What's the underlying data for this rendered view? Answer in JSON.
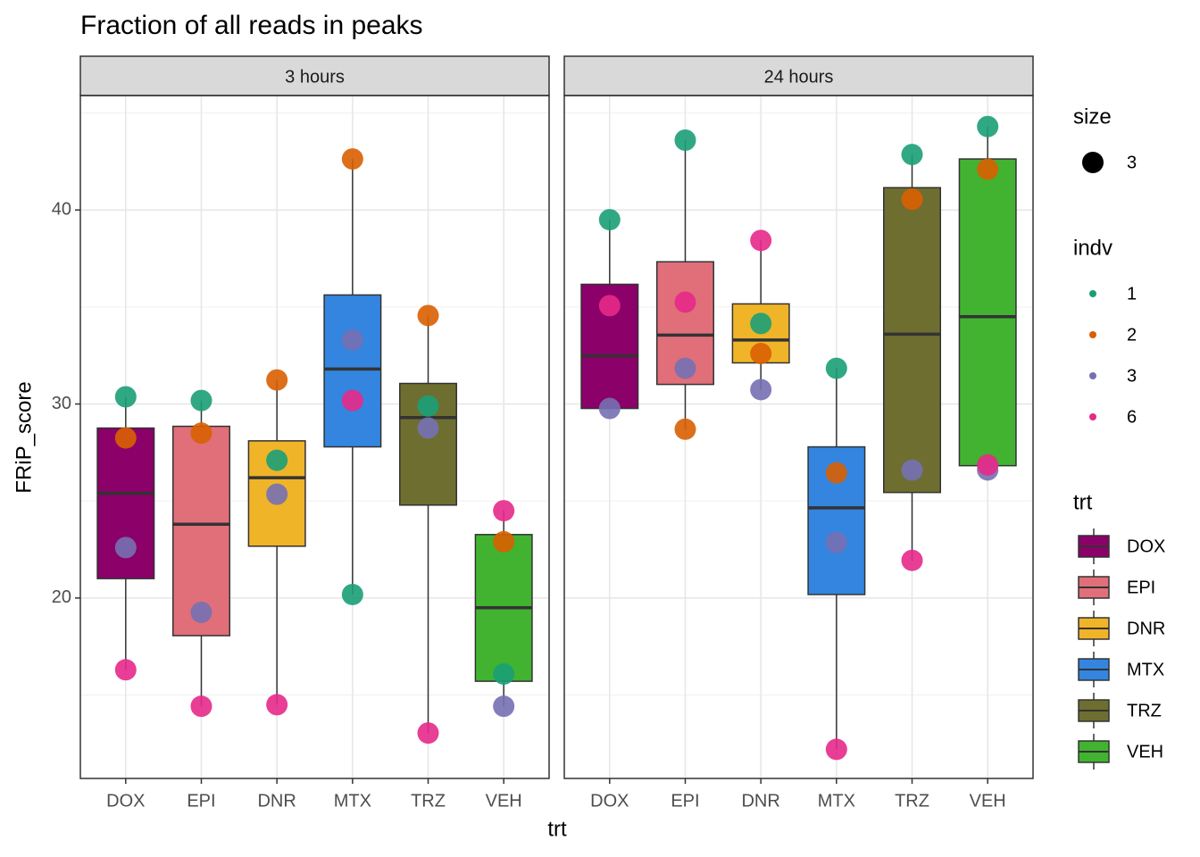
{
  "chart_data": {
    "type": "box",
    "title": "Fraction of all reads in peaks",
    "x_label": "trt",
    "y_label": "FRiP_score",
    "ylim": [
      10.7,
      45.9
    ],
    "yticks": [
      20,
      30,
      40
    ],
    "grid": true,
    "categories": [
      "DOX",
      "EPI",
      "DNR",
      "MTX",
      "TRZ",
      "VEH"
    ],
    "colors": [
      "#8b0069",
      "#e06f7a",
      "#f0b428",
      "#3385e0",
      "#6e6e30",
      "#41b330"
    ],
    "legend_title": "trt",
    "point_legend_title": "indv",
    "size_legend_title": "size",
    "point_size": 3,
    "series": [
      {
        "name": "1",
        "color": "#1b9e77"
      },
      {
        "name": "2",
        "color": "#d95f02"
      },
      {
        "name": "3",
        "color": "#7570b3"
      },
      {
        "name": "6",
        "color": "#e7298a"
      }
    ],
    "facets": [
      {
        "label": "3 hours",
        "q1": [
          21.0,
          18.06,
          22.67,
          27.79,
          24.79,
          15.71
        ],
        "median": [
          25.4,
          23.8,
          26.2,
          31.8,
          29.3,
          19.5
        ],
        "q3": [
          28.76,
          28.85,
          28.1,
          35.62,
          31.06,
          23.27
        ],
        "whisker_low": [
          16.3,
          14.42,
          14.5,
          20.18,
          13.04,
          14.42
        ],
        "whisker_high": [
          30.37,
          30.18,
          31.24,
          42.63,
          34.56,
          24.5
        ],
        "points": [
          [
            30.37,
            30.18,
            27.1,
            20.18,
            29.9,
            16.08
          ],
          [
            28.25,
            28.5,
            31.24,
            42.63,
            34.56,
            22.9
          ],
          [
            22.6,
            19.26,
            25.35,
            33.3,
            28.76,
            14.42
          ],
          [
            16.3,
            14.42,
            14.5,
            30.18,
            13.04,
            24.5
          ]
        ]
      },
      {
        "label": "24 hours",
        "q1": [
          29.77,
          31.01,
          32.12,
          20.18,
          25.44,
          26.82
        ],
        "median": [
          32.49,
          33.55,
          33.3,
          24.65,
          33.6,
          34.5
        ],
        "q3": [
          36.17,
          37.33,
          35.16,
          27.79,
          41.15,
          42.63
        ],
        "whisker_low": [
          29.77,
          28.7,
          30.74,
          12.2,
          21.94,
          26.6
        ],
        "whisker_high": [
          39.5,
          43.6,
          38.43,
          31.84,
          42.86,
          44.3
        ],
        "points": [
          [
            39.5,
            43.6,
            34.15,
            31.84,
            42.86,
            44.3
          ],
          [
            null,
            28.7,
            32.6,
            26.45,
            40.55,
            42.1
          ],
          [
            29.77,
            31.84,
            30.74,
            22.86,
            26.59,
            26.6
          ],
          [
            35.07,
            35.25,
            38.43,
            12.2,
            21.94,
            26.86
          ]
        ]
      }
    ]
  }
}
